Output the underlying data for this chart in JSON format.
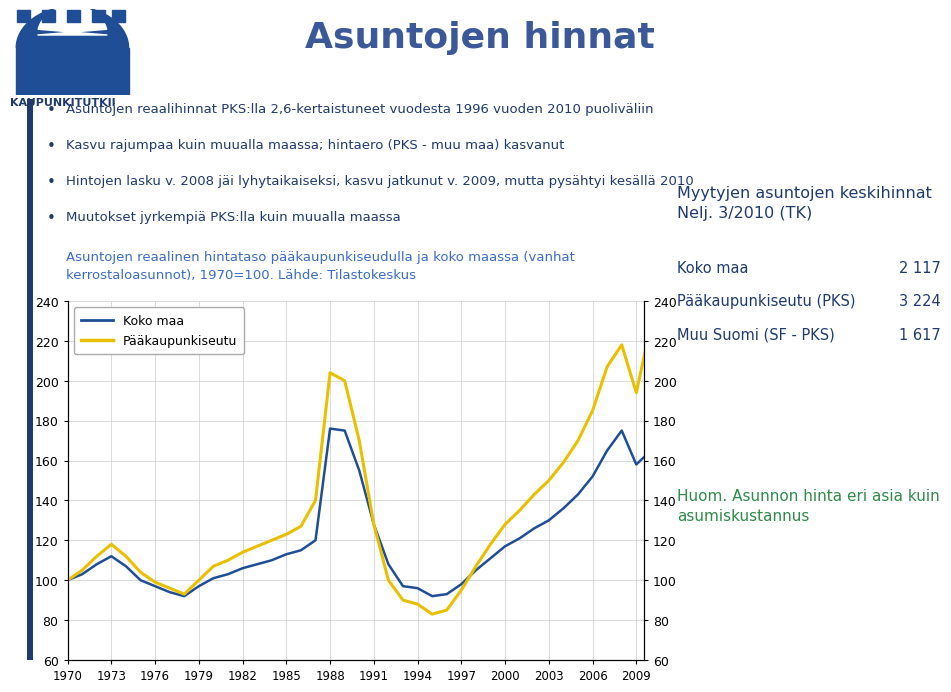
{
  "title": "Asuntojen hinnat",
  "chart_subtitle": "Asuntojen reaalinen hintataso pääkaupunkiseudulla ja koko maassa (vanhat\nkerrostaloasunnot), 1970=100. Lähde: Tilastokeskus",
  "bullet_points": [
    "Asuntojen reaalihinnat PKS:lla 2,6-kertaistuneet vuodesta 1996 vuoden 2010 puoliväliin",
    "Kasvu rajumpaa kuin muualla maassa; hintaero (PKS - muu maa) kasvanut",
    "Hintojen lasku v. 2008 jäi lyhytaikaiseksi, kasvu jatkunut v. 2009, mutta pysähtyi kesällä 2010",
    "Muutokset jyrkempiä PKS:lla kuin muualla maassa"
  ],
  "koko_maa_color": "#1F4E96",
  "pks_color": "#E8C000",
  "background_color": "#FFFFFF",
  "ylim": [
    60,
    240
  ],
  "yticks": [
    60,
    80,
    100,
    120,
    140,
    160,
    180,
    200,
    220,
    240
  ],
  "text_color_dark": "#1F3B6E",
  "text_color_green": "#2E8B4A",
  "side_header": "Myytyjen asuntojen keskihinnat\nNelj. 3/2010 (TK)",
  "side_rows": [
    {
      "label": "Koko maa",
      "value": "2 117"
    },
    {
      "label": "Pääkaupunkiseutu (PKS)",
      "value": "3 224"
    },
    {
      "label": "Muu Suomi (SF - PKS)",
      "value": "1 617"
    }
  ],
  "side_footer": "Huom. Asunnon hinta eri asia kuin\nasumiskustannus",
  "years": [
    1970,
    1971,
    1972,
    1973,
    1974,
    1975,
    1976,
    1977,
    1978,
    1979,
    1980,
    1981,
    1982,
    1983,
    1984,
    1985,
    1986,
    1987,
    1988,
    1989,
    1990,
    1991,
    1992,
    1993,
    1994,
    1995,
    1996,
    1997,
    1998,
    1999,
    2000,
    2001,
    2002,
    2003,
    2004,
    2005,
    2006,
    2007,
    2008,
    2009,
    2010
  ],
  "koko_maa": [
    100,
    103,
    108,
    112,
    107,
    100,
    97,
    94,
    92,
    97,
    101,
    103,
    106,
    108,
    110,
    113,
    115,
    120,
    176,
    175,
    155,
    128,
    108,
    97,
    96,
    92,
    93,
    98,
    105,
    111,
    117,
    121,
    126,
    130,
    136,
    143,
    152,
    165,
    175,
    158,
    165
  ],
  "pks": [
    100,
    105,
    112,
    118,
    112,
    104,
    99,
    96,
    93,
    100,
    107,
    110,
    114,
    117,
    120,
    123,
    127,
    140,
    204,
    200,
    170,
    128,
    100,
    90,
    88,
    83,
    85,
    95,
    107,
    118,
    128,
    135,
    143,
    150,
    159,
    170,
    185,
    207,
    218,
    194,
    228
  ],
  "xtick_years": [
    1970,
    1973,
    1976,
    1979,
    1982,
    1985,
    1988,
    1991,
    1994,
    1997,
    2000,
    2003,
    2006,
    2009
  ],
  "logo_color": "#1F4E96",
  "title_color": "#3B5998",
  "bar_color": "#1F3B6E",
  "bullet_color": "#1F3B6E",
  "subtitle_chart_color": "#3A6CC8"
}
